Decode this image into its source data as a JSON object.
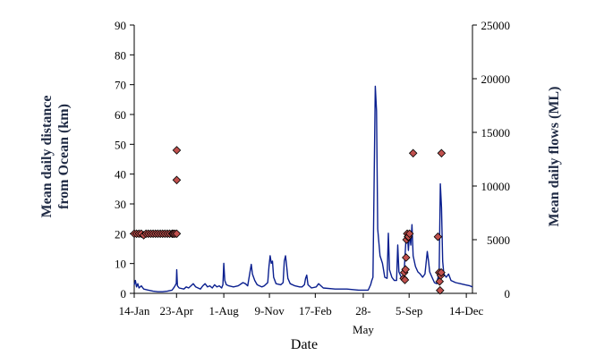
{
  "chart_data": {
    "type": "line",
    "xlabel": "Date",
    "ylabel_left": "Mean daily distance from Ocean (km)",
    "ylabel_right": "Mean daily flows (ML)",
    "ylabel_left_lines": [
      "Mean daily distance",
      "from Ocean (km)"
    ],
    "ylim_left": [
      0,
      90
    ],
    "ylim_right": [
      0,
      25000
    ],
    "xlim_days": [
      0,
      1431
    ],
    "yticks_left": [
      0,
      10,
      20,
      30,
      40,
      50,
      60,
      70,
      80,
      90
    ],
    "yticks_right": [
      0,
      5000,
      10000,
      15000,
      20000,
      25000
    ],
    "xticks": [
      {
        "pos": 0,
        "label": "14-Jan"
      },
      {
        "pos": 179,
        "label": "23-Apr"
      },
      {
        "pos": 379,
        "label": "1-Aug"
      },
      {
        "pos": 572,
        "label": "9-Nov"
      },
      {
        "pos": 766,
        "label": "17-Feb"
      },
      {
        "pos": 969,
        "label": "28-",
        "label2": "May"
      },
      {
        "pos": 1163,
        "label": "5-Sep"
      },
      {
        "pos": 1405,
        "label": "14-Dec"
      }
    ],
    "line_color": "#0a1f8f",
    "marker_color": "#c0504d",
    "series": [
      {
        "axis": "right",
        "points": [
          [
            0,
            800
          ],
          [
            5,
            1200
          ],
          [
            10,
            600
          ],
          [
            15,
            900
          ],
          [
            20,
            500
          ],
          [
            30,
            700
          ],
          [
            40,
            400
          ],
          [
            60,
            300
          ],
          [
            80,
            200
          ],
          [
            100,
            150
          ],
          [
            120,
            150
          ],
          [
            140,
            200
          ],
          [
            160,
            300
          ],
          [
            170,
            600
          ],
          [
            175,
            800
          ],
          [
            178,
            900
          ],
          [
            180,
            2200
          ],
          [
            183,
            700
          ],
          [
            190,
            500
          ],
          [
            210,
            400
          ],
          [
            220,
            600
          ],
          [
            230,
            500
          ],
          [
            240,
            700
          ],
          [
            250,
            900
          ],
          [
            260,
            600
          ],
          [
            270,
            500
          ],
          [
            280,
            400
          ],
          [
            290,
            700
          ],
          [
            300,
            900
          ],
          [
            310,
            600
          ],
          [
            320,
            700
          ],
          [
            330,
            500
          ],
          [
            340,
            800
          ],
          [
            350,
            600
          ],
          [
            360,
            700
          ],
          [
            370,
            500
          ],
          [
            375,
            800
          ],
          [
            379,
            2800
          ],
          [
            383,
            1200
          ],
          [
            390,
            800
          ],
          [
            400,
            700
          ],
          [
            420,
            600
          ],
          [
            440,
            700
          ],
          [
            460,
            1000
          ],
          [
            470,
            900
          ],
          [
            480,
            700
          ],
          [
            490,
            2000
          ],
          [
            495,
            2700
          ],
          [
            500,
            1800
          ],
          [
            510,
            1200
          ],
          [
            520,
            800
          ],
          [
            530,
            700
          ],
          [
            540,
            600
          ],
          [
            550,
            700
          ],
          [
            560,
            900
          ],
          [
            565,
            1000
          ],
          [
            570,
            2500
          ],
          [
            575,
            3500
          ],
          [
            580,
            2800
          ],
          [
            585,
            3000
          ],
          [
            590,
            1500
          ],
          [
            600,
            900
          ],
          [
            620,
            800
          ],
          [
            630,
            1000
          ],
          [
            635,
            3000
          ],
          [
            640,
            3500
          ],
          [
            645,
            2500
          ],
          [
            650,
            1400
          ],
          [
            660,
            900
          ],
          [
            680,
            700
          ],
          [
            700,
            600
          ],
          [
            710,
            600
          ],
          [
            720,
            800
          ],
          [
            725,
            1400
          ],
          [
            730,
            1700
          ],
          [
            735,
            800
          ],
          [
            750,
            500
          ],
          [
            770,
            600
          ],
          [
            780,
            900
          ],
          [
            790,
            700
          ],
          [
            800,
            500
          ],
          [
            850,
            400
          ],
          [
            900,
            400
          ],
          [
            950,
            300
          ],
          [
            990,
            300
          ],
          [
            1000,
            800
          ],
          [
            1005,
            1200
          ],
          [
            1010,
            1500
          ],
          [
            1020,
            19300
          ],
          [
            1025,
            17000
          ],
          [
            1030,
            6000
          ],
          [
            1040,
            3500
          ],
          [
            1050,
            2800
          ],
          [
            1060,
            1500
          ],
          [
            1070,
            1400
          ],
          [
            1075,
            5600
          ],
          [
            1080,
            2200
          ],
          [
            1090,
            1500
          ],
          [
            1100,
            1200
          ],
          [
            1110,
            1200
          ],
          [
            1115,
            4500
          ],
          [
            1120,
            2000
          ],
          [
            1130,
            1500
          ],
          [
            1140,
            1200
          ],
          [
            1150,
            5200
          ],
          [
            1155,
            5800
          ],
          [
            1160,
            4000
          ],
          [
            1165,
            5600
          ],
          [
            1170,
            4500
          ],
          [
            1175,
            6400
          ],
          [
            1180,
            3500
          ],
          [
            1190,
            2500
          ],
          [
            1200,
            2000
          ],
          [
            1210,
            1800
          ],
          [
            1220,
            1500
          ],
          [
            1230,
            1800
          ],
          [
            1240,
            3900
          ],
          [
            1245,
            3000
          ],
          [
            1250,
            2000
          ],
          [
            1260,
            1500
          ],
          [
            1270,
            1000
          ],
          [
            1280,
            900
          ],
          [
            1290,
            2000
          ],
          [
            1295,
            10200
          ],
          [
            1300,
            8000
          ],
          [
            1305,
            3000
          ],
          [
            1310,
            1800
          ],
          [
            1320,
            1500
          ],
          [
            1330,
            1800
          ],
          [
            1340,
            1200
          ],
          [
            1360,
            1000
          ],
          [
            1380,
            900
          ],
          [
            1400,
            800
          ],
          [
            1420,
            700
          ],
          [
            1431,
            600
          ]
        ]
      },
      {
        "axis": "left",
        "points": [
          [
            0,
            20
          ],
          [
            10,
            20
          ],
          [
            20,
            20
          ],
          [
            30,
            20
          ],
          [
            40,
            19.5
          ],
          [
            50,
            20
          ],
          [
            60,
            20
          ],
          [
            70,
            20
          ],
          [
            80,
            20
          ],
          [
            90,
            20
          ],
          [
            100,
            20
          ],
          [
            110,
            20
          ],
          [
            120,
            20
          ],
          [
            130,
            20
          ],
          [
            140,
            20
          ],
          [
            150,
            20
          ],
          [
            160,
            20
          ],
          [
            165,
            20
          ],
          [
            172,
            20
          ],
          [
            180,
            20
          ],
          [
            180,
            38
          ],
          [
            180,
            48
          ],
          [
            1140,
            5
          ],
          [
            1142,
            7
          ],
          [
            1145,
            4.5
          ],
          [
            1148,
            8
          ],
          [
            1150,
            12
          ],
          [
            1152,
            18
          ],
          [
            1155,
            20
          ],
          [
            1158,
            19
          ],
          [
            1160,
            19
          ],
          [
            1165,
            20
          ],
          [
            1180,
            47
          ],
          [
            1285,
            19
          ],
          [
            1290,
            7
          ],
          [
            1292,
            4
          ],
          [
            1294,
            1
          ],
          [
            1297,
            6
          ],
          [
            1299,
            7
          ],
          [
            1300,
            47
          ]
        ]
      }
    ]
  }
}
